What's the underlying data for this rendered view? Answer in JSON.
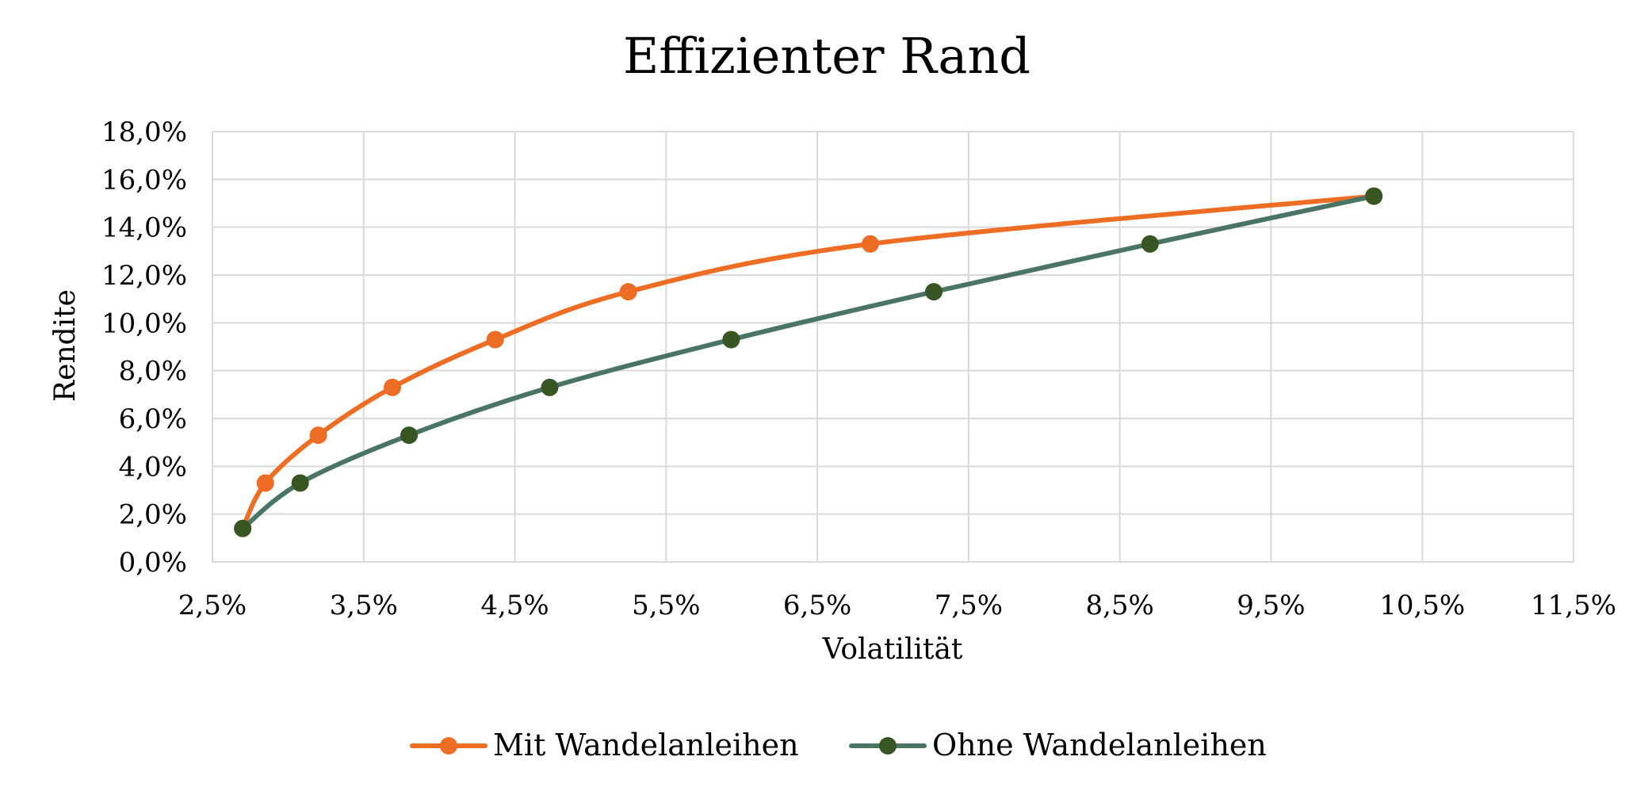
{
  "chart_data": {
    "type": "line",
    "title": "Effizienter Rand",
    "xlabel": "Volatilität",
    "ylabel": "Rendite",
    "xlim": [
      2.5,
      11.5
    ],
    "ylim": [
      0,
      18
    ],
    "x_ticks": [
      2.5,
      3.5,
      4.5,
      5.5,
      6.5,
      7.5,
      8.5,
      9.5,
      10.5,
      11.5
    ],
    "x_tick_labels": [
      "2,5%",
      "3,5%",
      "4,5%",
      "5,5%",
      "6,5%",
      "7,5%",
      "8,5%",
      "9,5%",
      "10,5%",
      "11,5%"
    ],
    "y_ticks": [
      0,
      2,
      4,
      6,
      8,
      10,
      12,
      14,
      16,
      18
    ],
    "y_tick_labels": [
      "0,0%",
      "2,0%",
      "4,0%",
      "6,0%",
      "8,0%",
      "10,0%",
      "12,0%",
      "14,0%",
      "16,0%",
      "18,0%"
    ],
    "grid": true,
    "legend_position": "bottom",
    "series": [
      {
        "name": "Mit Wandelanleihen",
        "color": "#ee6d24",
        "x": [
          2.7,
          2.85,
          3.2,
          3.69,
          4.37,
          5.25,
          6.85,
          10.18
        ],
        "y": [
          1.4,
          3.3,
          5.3,
          7.3,
          9.3,
          11.3,
          13.3,
          15.3
        ]
      },
      {
        "name": "Ohne Wandelanleihen",
        "color": "#4a7565",
        "marker_color": "#375623",
        "x": [
          2.7,
          3.08,
          3.8,
          4.73,
          5.93,
          7.27,
          8.7,
          10.18
        ],
        "y": [
          1.4,
          3.3,
          5.3,
          7.3,
          9.3,
          11.3,
          13.3,
          15.3
        ]
      }
    ]
  }
}
